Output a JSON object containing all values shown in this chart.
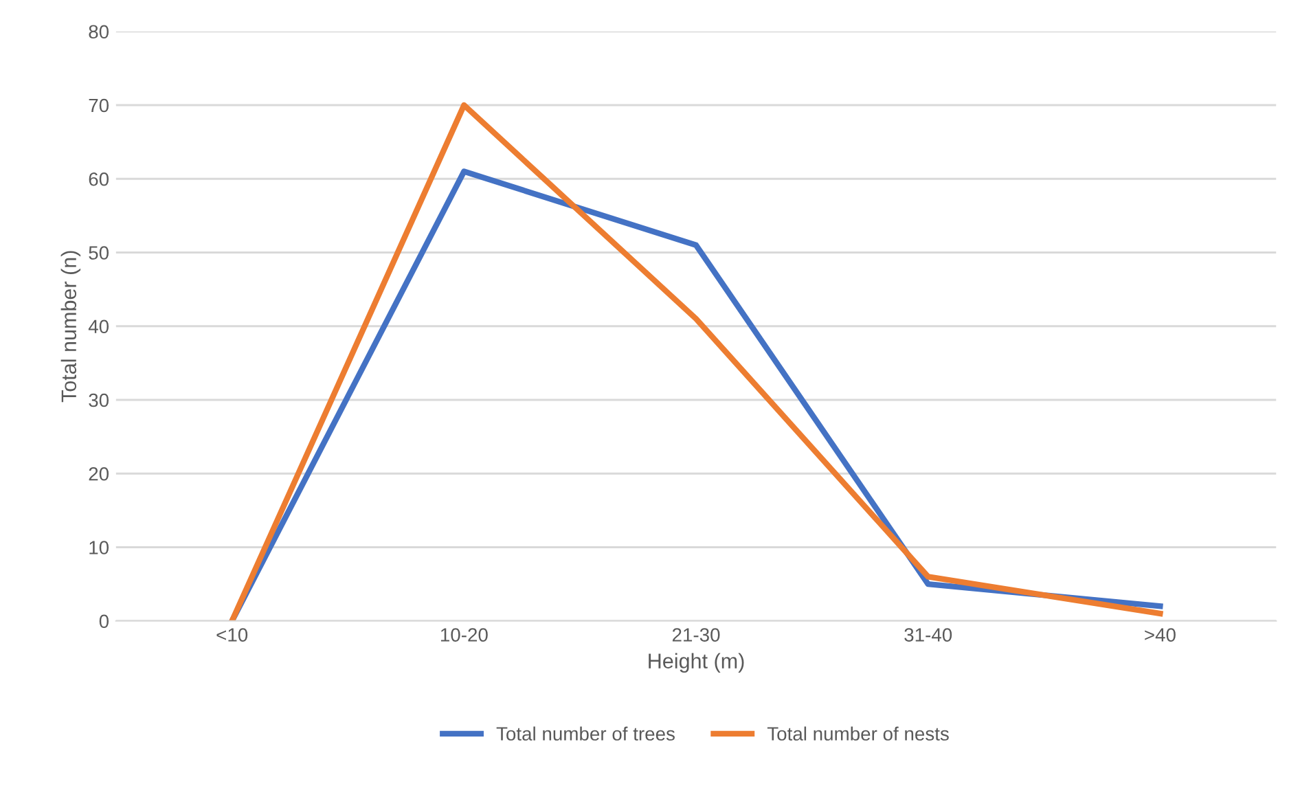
{
  "chart_data": {
    "type": "line",
    "xlabel": "Height (m)",
    "ylabel": "Total number (n)",
    "categories": [
      "<10",
      "10-20",
      "21-30",
      "31-40",
      ">40"
    ],
    "series": [
      {
        "name": "Total number of trees",
        "color": "#4472c4",
        "values": [
          0,
          61,
          51,
          5,
          2
        ]
      },
      {
        "name": "Total number of nests",
        "color": "#ed7d31",
        "values": [
          0,
          70,
          41,
          6,
          1
        ]
      }
    ],
    "ylim": [
      0,
      80
    ],
    "yticks": [
      0,
      10,
      20,
      30,
      40,
      50,
      60,
      70,
      80
    ],
    "grid": "y",
    "legend": "bottom",
    "marker": "none",
    "line_style": "solid"
  }
}
